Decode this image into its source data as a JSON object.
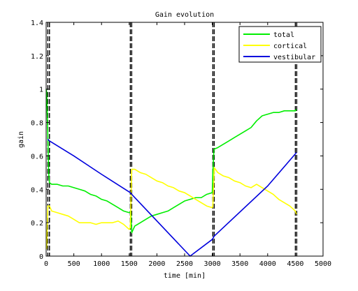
{
  "chart_data": {
    "type": "line",
    "title": "Gain evolution",
    "xlabel": "time [min]",
    "ylabel": "gain",
    "xlim": [
      0,
      5000
    ],
    "ylim": [
      0,
      1.4
    ],
    "xticks": [
      0,
      500,
      1000,
      1500,
      2000,
      2500,
      3000,
      3500,
      4000,
      4500,
      5000
    ],
    "xtick_labels": [
      "0",
      "500",
      "1000",
      "1500",
      "2000",
      "2500",
      "3000",
      "3500",
      "4000",
      "4500",
      "5000"
    ],
    "yticks": [
      0,
      0.2,
      0.4,
      0.6,
      0.8,
      1,
      1.2,
      1.4
    ],
    "ytick_labels": [
      "0",
      "0.2",
      "0.4",
      "0.6",
      "0.8",
      "1",
      "1.2",
      "1.4"
    ],
    "grid": false,
    "legend_placement": "top-right",
    "vertical_dashed_lines": [
      30,
      60,
      1520,
      1545,
      3010,
      3035,
      4500,
      4525
    ],
    "series": [
      {
        "name": "total",
        "color": "#00ee00",
        "x": [
          0,
          10,
          30,
          45,
          60,
          100,
          200,
          300,
          400,
          500,
          600,
          700,
          800,
          900,
          1000,
          1100,
          1200,
          1300,
          1400,
          1500,
          1530,
          1545,
          1600,
          1700,
          1800,
          1900,
          2000,
          2100,
          2200,
          2300,
          2400,
          2500,
          2600,
          2700,
          2800,
          2900,
          3000,
          3010,
          3030,
          3100,
          3200,
          3300,
          3400,
          3500,
          3600,
          3700,
          3800,
          3900,
          4000,
          4100,
          4200,
          4300,
          4400,
          4500,
          4520
        ],
        "y": [
          1.0,
          0.98,
          0.72,
          0.5,
          0.44,
          0.43,
          0.43,
          0.42,
          0.42,
          0.41,
          0.4,
          0.39,
          0.37,
          0.36,
          0.34,
          0.33,
          0.31,
          0.29,
          0.27,
          0.26,
          0.27,
          0.14,
          0.18,
          0.2,
          0.22,
          0.24,
          0.25,
          0.26,
          0.27,
          0.29,
          0.31,
          0.33,
          0.34,
          0.35,
          0.35,
          0.37,
          0.38,
          0.5,
          0.64,
          0.65,
          0.67,
          0.69,
          0.71,
          0.73,
          0.75,
          0.77,
          0.81,
          0.84,
          0.85,
          0.86,
          0.86,
          0.87,
          0.87,
          0.87,
          0.88
        ]
      },
      {
        "name": "cortical",
        "color": "#ffff00",
        "x": [
          0,
          10,
          30,
          60,
          100,
          200,
          300,
          400,
          500,
          600,
          700,
          800,
          900,
          1000,
          1100,
          1200,
          1300,
          1400,
          1500,
          1520,
          1545,
          1600,
          1700,
          1800,
          1900,
          2000,
          2100,
          2200,
          2300,
          2400,
          2500,
          2600,
          2700,
          2800,
          2900,
          3000,
          3010,
          3035,
          3100,
          3200,
          3300,
          3400,
          3500,
          3600,
          3700,
          3800,
          3900,
          4000,
          4100,
          4200,
          4300,
          4400,
          4500,
          4520
        ],
        "y": [
          0.04,
          0.05,
          0.3,
          0.3,
          0.27,
          0.26,
          0.25,
          0.24,
          0.22,
          0.2,
          0.2,
          0.2,
          0.19,
          0.2,
          0.2,
          0.2,
          0.21,
          0.19,
          0.16,
          0.17,
          0.52,
          0.52,
          0.5,
          0.49,
          0.47,
          0.45,
          0.44,
          0.42,
          0.41,
          0.39,
          0.38,
          0.36,
          0.34,
          0.32,
          0.3,
          0.29,
          0.3,
          0.53,
          0.5,
          0.48,
          0.47,
          0.45,
          0.44,
          0.42,
          0.41,
          0.43,
          0.41,
          0.39,
          0.37,
          0.34,
          0.32,
          0.3,
          0.27,
          0.25
        ]
      },
      {
        "name": "vestibular",
        "color": "#0000dd",
        "x": [
          30,
          60,
          500,
          1000,
          1520,
          1545,
          2600,
          3000,
          3035,
          4000,
          4520
        ],
        "y": [
          0.7,
          0.69,
          0.6,
          0.49,
          0.38,
          0.37,
          0.0,
          0.1,
          0.12,
          0.42,
          0.62
        ]
      }
    ]
  }
}
